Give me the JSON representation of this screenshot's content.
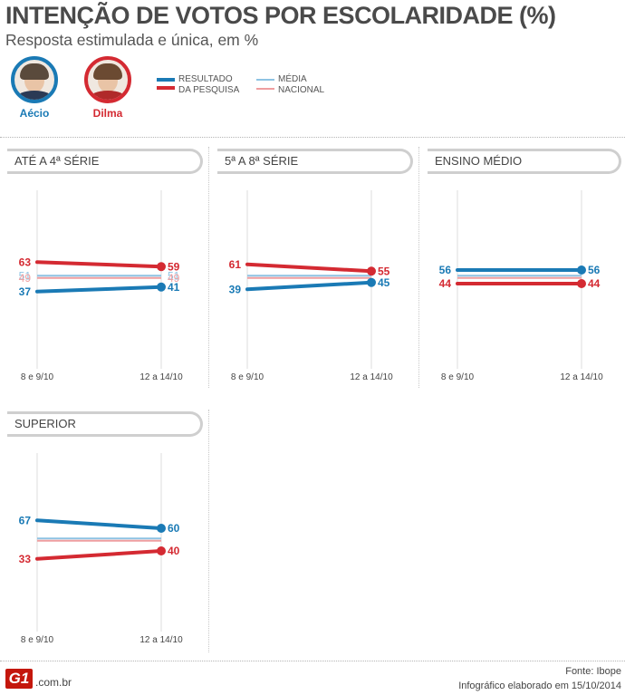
{
  "header": {
    "title": "INTENÇÃO DE VOTOS POR ESCOLARIDADE (%)",
    "subtitle": "Resposta estimulada e única, em %"
  },
  "candidates": [
    {
      "name": "Aécio",
      "color": "#1a7ab5"
    },
    {
      "name": "Dilma",
      "color": "#d42a32"
    }
  ],
  "legend": {
    "result_line1": "RESULTADO",
    "result_line2": "DA PESQUISA",
    "avg_line1": "MÉDIA",
    "avg_line2": "NACIONAL",
    "avg_blue": "#8ec3e3",
    "avg_red": "#ef9ea0"
  },
  "chart_data": [
    {
      "type": "line",
      "title": "ATÉ A 4ª SÉRIE",
      "x": [
        "8 e 9/10",
        "12 a 14/10"
      ],
      "series": [
        {
          "name": "Aécio",
          "values": [
            37,
            41
          ]
        },
        {
          "name": "Dilma",
          "values": [
            63,
            59
          ]
        }
      ],
      "averages": {
        "Aécio": 51,
        "Dilma": 49
      },
      "average_labels_shown": true
    },
    {
      "type": "line",
      "title": "5ª A 8ª SÉRIE",
      "x": [
        "8 e 9/10",
        "12 a 14/10"
      ],
      "series": [
        {
          "name": "Aécio",
          "values": [
            39,
            45
          ]
        },
        {
          "name": "Dilma",
          "values": [
            61,
            55
          ]
        }
      ],
      "averages": {
        "Aécio": 51,
        "Dilma": 49
      },
      "average_labels_shown": false
    },
    {
      "type": "line",
      "title": "ENSINO MÉDIO",
      "x": [
        "8 e 9/10",
        "12 a 14/10"
      ],
      "series": [
        {
          "name": "Aécio",
          "values": [
            56,
            56
          ]
        },
        {
          "name": "Dilma",
          "values": [
            44,
            44
          ]
        }
      ],
      "averages": {
        "Aécio": 51,
        "Dilma": 49
      },
      "average_labels_shown": false
    },
    {
      "type": "line",
      "title": "SUPERIOR",
      "x": [
        "8 e 9/10",
        "12 a 14/10"
      ],
      "series": [
        {
          "name": "Aécio",
          "values": [
            67,
            60
          ]
        },
        {
          "name": "Dilma",
          "values": [
            33,
            40
          ]
        }
      ],
      "averages": {
        "Aécio": 51,
        "Dilma": 49
      },
      "average_labels_shown": false
    }
  ],
  "footer": {
    "logo": "G1",
    "domain": ".com.br",
    "source": "Fonte: Ibope",
    "credit": "Infográfico elaborado em 15/10/2014"
  }
}
